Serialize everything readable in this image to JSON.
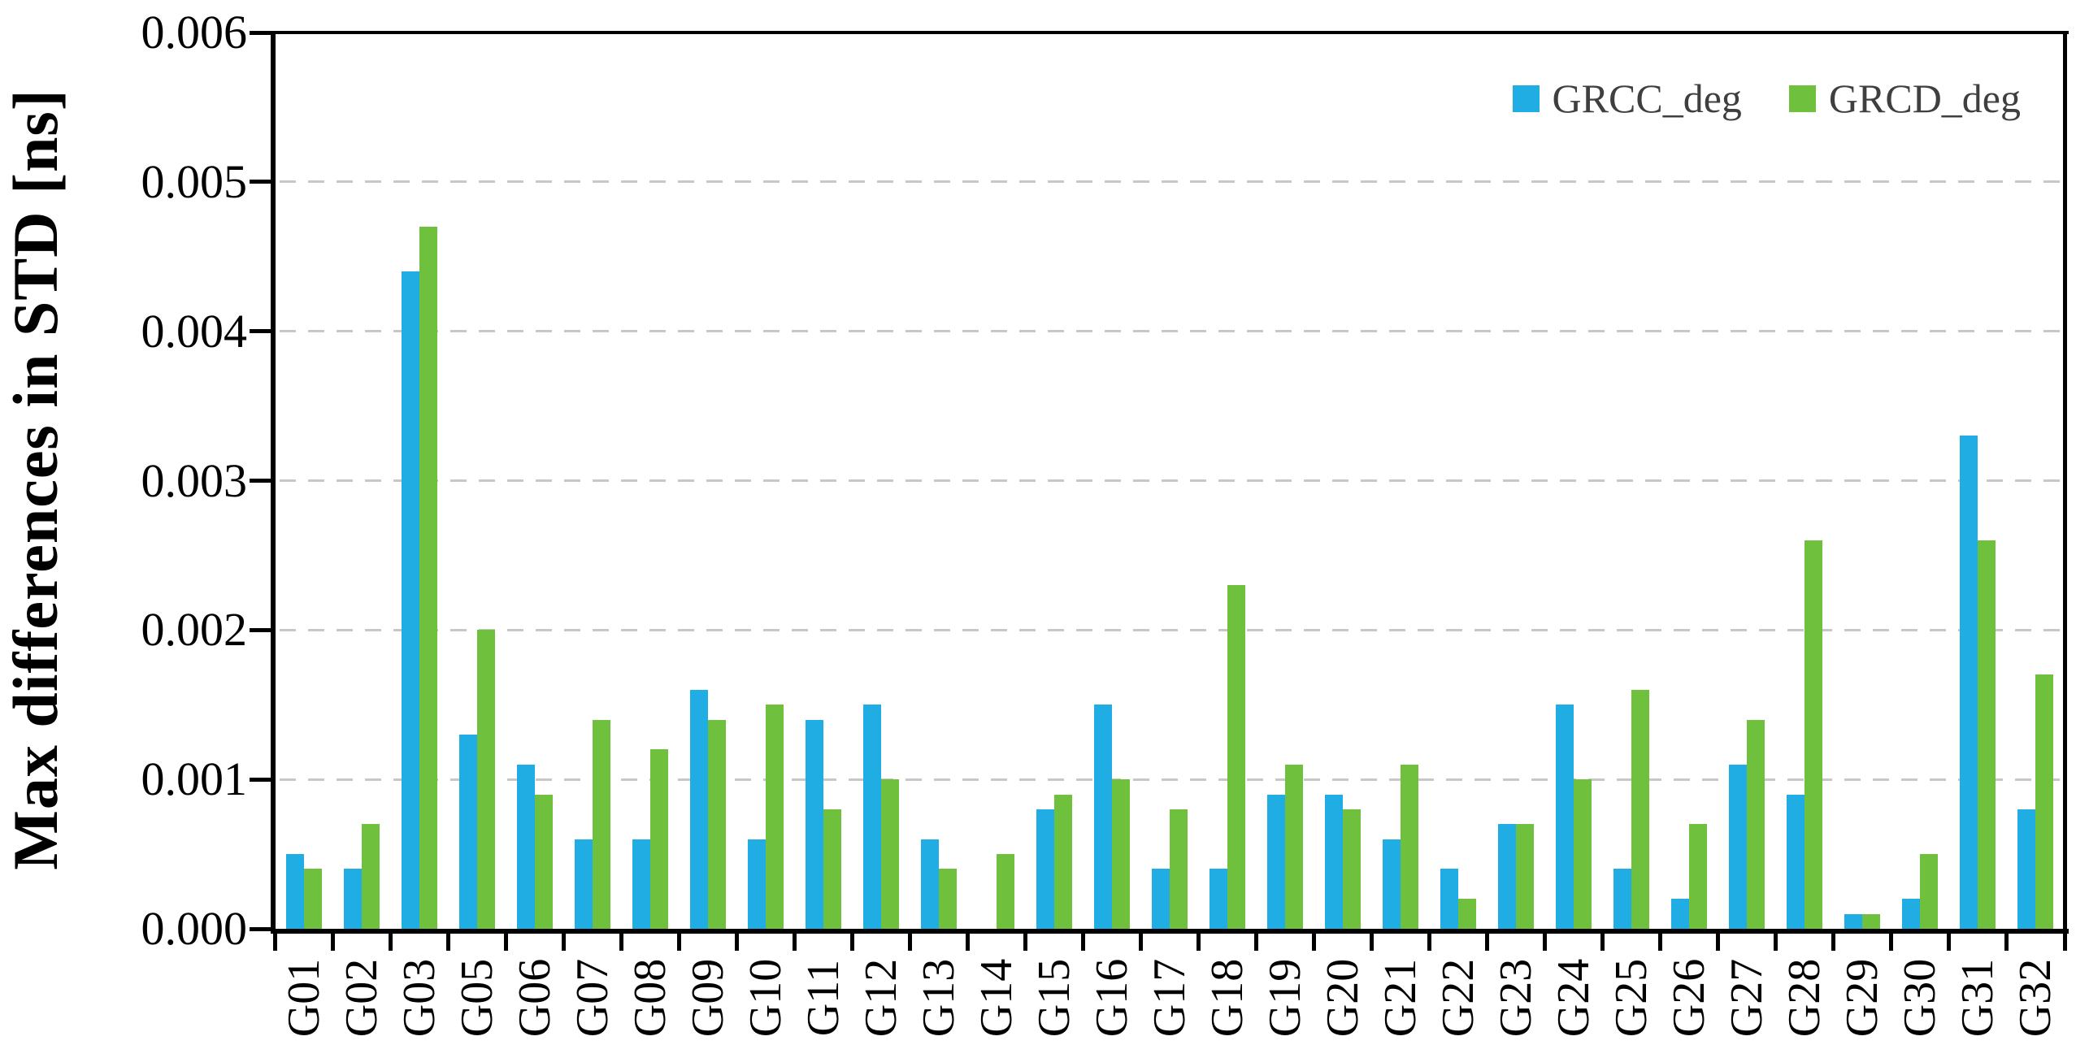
{
  "chart_data": {
    "type": "bar",
    "title": "",
    "xlabel": "",
    "ylabel": "Max differences in STD [ns]",
    "ylim": [
      0,
      0.006
    ],
    "ytick_step": 0.001,
    "ytick_labels": [
      "0.000",
      "0.001",
      "0.002",
      "0.003",
      "0.004",
      "0.005",
      "0.006"
    ],
    "grid": "horizontal dashed gridlines at every 0.001",
    "legend_position": "top-right inside plot",
    "categories": [
      "G01",
      "G02",
      "G03",
      "G05",
      "G06",
      "G07",
      "G08",
      "G09",
      "G10",
      "G11",
      "G12",
      "G13",
      "G14",
      "G15",
      "G16",
      "G17",
      "G18",
      "G19",
      "G20",
      "G21",
      "G22",
      "G23",
      "G24",
      "G25",
      "G26",
      "G27",
      "G28",
      "G29",
      "G30",
      "G31",
      "G32"
    ],
    "series": [
      {
        "name": "GRCC_deg",
        "color": "#1FADE4",
        "values": [
          0.0005,
          0.0004,
          0.0044,
          0.0013,
          0.0011,
          0.0006,
          0.0006,
          0.0016,
          0.0006,
          0.0014,
          0.0015,
          0.0006,
          0,
          0.0008,
          0.0015,
          0.0004,
          0.0004,
          0.0009,
          0.0009,
          0.0006,
          0.0004,
          0.0007,
          0.0015,
          0.0004,
          0.0002,
          0.0011,
          0.0009,
          0.0001,
          0.0002,
          0.0033,
          0.0008
        ]
      },
      {
        "name": "GRCD_deg",
        "color": "#6FC13D",
        "values": [
          0.0004,
          0.0007,
          0.0047,
          0.002,
          0.0009,
          0.0014,
          0.0012,
          0.0014,
          0.0015,
          0.0008,
          0.001,
          0.0004,
          0.0005,
          0.0009,
          0.001,
          0.0008,
          0.0023,
          0.0011,
          0.0008,
          0.0011,
          0.0002,
          0.0007,
          0.001,
          0.0016,
          0.0007,
          0.0014,
          0.0026,
          0.0001,
          0.0005,
          0.0026,
          0.0017
        ]
      }
    ]
  },
  "legend": {
    "items": [
      {
        "label": "GRCC_deg",
        "color": "#1FADE4"
      },
      {
        "label": "GRCD_deg",
        "color": "#6FC13D"
      }
    ]
  },
  "colors": {
    "background": "#ffffff",
    "axis": "#000000",
    "gridline": "#c8c8c8",
    "legend_text": "#3f3f3f",
    "tick_text": "#000000"
  }
}
